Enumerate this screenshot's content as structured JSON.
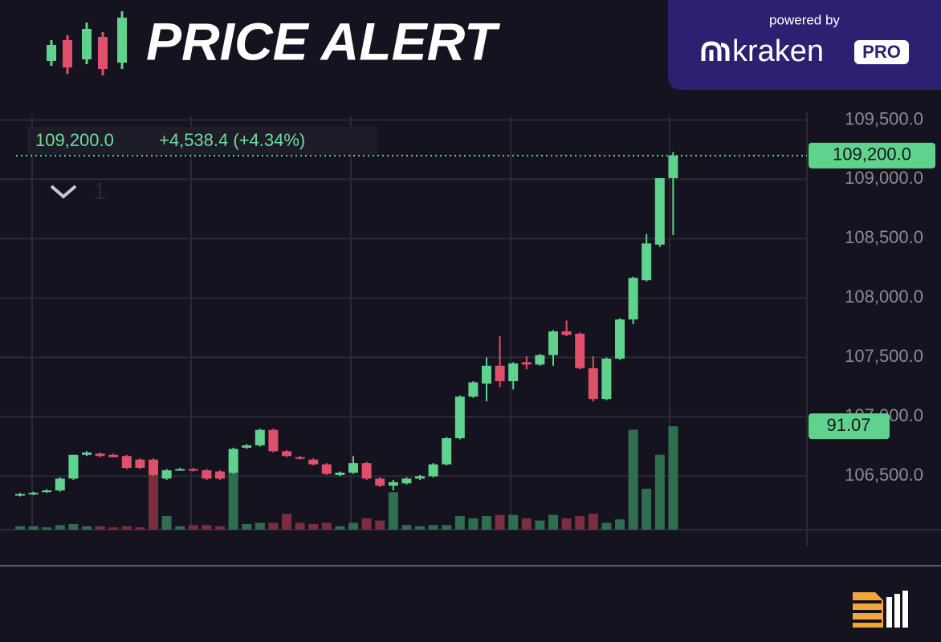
{
  "header": {
    "title": "PRICE ALERT",
    "powered_by": "powered by",
    "brand": "kraken",
    "brand_tag": "PRO"
  },
  "chart_data": {
    "type": "candlestick",
    "last_price_label": "109,200.0",
    "change_label": "+4,538.4 (+4.34%)",
    "pane_label": "1",
    "up_color": "#5fd38d",
    "down_color": "#e0506a",
    "grid": true,
    "ylim": [
      106050,
      109530
    ],
    "yticks": [
      {
        "value": 106500,
        "label": "106,500.0"
      },
      {
        "value": 107000,
        "label": "107,000.0"
      },
      {
        "value": 107500,
        "label": "107,500.0"
      },
      {
        "value": 108000,
        "label": "108,000.0"
      },
      {
        "value": 108500,
        "label": "108,500.0"
      },
      {
        "value": 109000,
        "label": "109,000.0"
      },
      {
        "value": 109500,
        "label": "109,500.0"
      }
    ],
    "open": [
      106340,
      106350,
      106370,
      106380,
      106480,
      106680,
      106690,
      106680,
      106670,
      106640,
      106640,
      106480,
      106560,
      106560,
      106550,
      106540,
      106530,
      106740,
      106760,
      106890,
      106710,
      106660,
      106640,
      106600,
      106510,
      106530,
      106610,
      106480,
      106420,
      106440,
      106480,
      106500,
      106600,
      106820,
      107170,
      107280,
      107430,
      107300,
      107460,
      107440,
      107520,
      107720,
      107700,
      107410,
      107150,
      107490,
      107820,
      108150,
      108450,
      109010
    ],
    "high": [
      106360,
      106370,
      106390,
      106490,
      106680,
      106710,
      106700,
      106690,
      106680,
      106650,
      106650,
      106560,
      106570,
      106570,
      106560,
      106550,
      106740,
      106770,
      106900,
      106900,
      106720,
      106670,
      106650,
      106610,
      106540,
      106670,
      106620,
      106490,
      106470,
      106490,
      106510,
      106610,
      106830,
      107180,
      107300,
      107500,
      107680,
      107460,
      107510,
      107530,
      107730,
      107810,
      107710,
      107510,
      107500,
      107830,
      108180,
      108540,
      109010,
      109230
    ],
    "low": [
      106330,
      106340,
      106360,
      106370,
      106470,
      106670,
      106660,
      106660,
      106560,
      106560,
      106500,
      106470,
      106550,
      106540,
      106470,
      106470,
      106520,
      106730,
      106750,
      106700,
      106660,
      106640,
      106590,
      106510,
      106500,
      106520,
      106470,
      106410,
      106380,
      106430,
      106470,
      106490,
      106590,
      106810,
      107160,
      107130,
      107250,
      107230,
      107400,
      107430,
      107430,
      107680,
      107400,
      107130,
      107140,
      107480,
      107780,
      108140,
      108430,
      108530
    ],
    "close": [
      106350,
      106360,
      106380,
      106480,
      106680,
      106700,
      106670,
      106660,
      106570,
      106570,
      106510,
      106550,
      106560,
      106550,
      106480,
      106480,
      106730,
      106760,
      106890,
      106710,
      106670,
      106650,
      106600,
      106520,
      106530,
      106610,
      106480,
      106420,
      106450,
      106480,
      106500,
      106600,
      106820,
      107170,
      107290,
      107430,
      107300,
      107450,
      107440,
      107520,
      107720,
      107690,
      107410,
      107150,
      107490,
      107820,
      108170,
      108460,
      109010,
      109200
    ],
    "volume": {
      "values": [
        3,
        3,
        2,
        4,
        5,
        3,
        3,
        2,
        3,
        2,
        51,
        12,
        3,
        4,
        4,
        3,
        51,
        5,
        6,
        6,
        14,
        6,
        5,
        6,
        3,
        6,
        10,
        8,
        33,
        4,
        3,
        4,
        4,
        12,
        10,
        12,
        13,
        13,
        10,
        8,
        13,
        10,
        12,
        14,
        6,
        9,
        88,
        36,
        66,
        91.07
      ],
      "y2lim": [
        0,
        364
      ]
    }
  }
}
